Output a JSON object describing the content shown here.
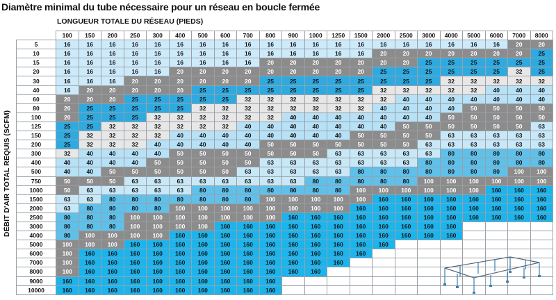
{
  "title": "Diamètre minimal du tube nécessaire pour un réseau en boucle fermée",
  "x_axis_label": "LONGUEUR TOTALE DU RÉSEAU (PIEDS)",
  "y_axis_label": "DÉBIT D'AIR TOTAL REQUIS (SCFM)",
  "columns": [
    "100",
    "150",
    "200",
    "250",
    "300",
    "400",
    "500",
    "600",
    "700",
    "800",
    "900",
    "1000",
    "1250",
    "1500",
    "2000",
    "2500",
    "3000",
    "4000",
    "5000",
    "6000",
    "7000",
    "8000"
  ],
  "rows": [
    {
      "flow": "5",
      "values": [
        "16",
        "16",
        "16",
        "16",
        "16",
        "16",
        "16",
        "16",
        "16",
        "16",
        "16",
        "16",
        "16",
        "16",
        "16",
        "16",
        "16",
        "16",
        "16",
        "16",
        "20",
        "20"
      ]
    },
    {
      "flow": "10",
      "values": [
        "16",
        "16",
        "16",
        "16",
        "16",
        "16",
        "16",
        "16",
        "16",
        "16",
        "16",
        "16",
        "16",
        "16",
        "20",
        "20",
        "20",
        "20",
        "20",
        "20",
        "20",
        "25"
      ]
    },
    {
      "flow": "15",
      "values": [
        "16",
        "16",
        "16",
        "16",
        "16",
        "16",
        "16",
        "16",
        "16",
        "20",
        "20",
        "20",
        "20",
        "20",
        "20",
        "20",
        "25",
        "25",
        "25",
        "25",
        "25",
        "25"
      ]
    },
    {
      "flow": "20",
      "values": [
        "16",
        "16",
        "16",
        "16",
        "16",
        "20",
        "20",
        "20",
        "20",
        "20",
        "20",
        "20",
        "20",
        "20",
        "25",
        "25",
        "25",
        "25",
        "25",
        "25",
        "32",
        "25"
      ]
    },
    {
      "flow": "30",
      "values": [
        "16",
        "16",
        "16",
        "20",
        "20",
        "20",
        "20",
        "20",
        "20",
        "25",
        "25",
        "25",
        "25",
        "25",
        "25",
        "25",
        "25",
        "32",
        "32",
        "32",
        "32",
        "32"
      ]
    },
    {
      "flow": "40",
      "values": [
        "16",
        "20",
        "20",
        "20",
        "20",
        "20",
        "25",
        "25",
        "25",
        "25",
        "25",
        "25",
        "25",
        "25",
        "32",
        "32",
        "32",
        "32",
        "32",
        "40",
        "40",
        "40"
      ]
    },
    {
      "flow": "60",
      "values": [
        "20",
        "20",
        "20",
        "25",
        "25",
        "25",
        "25",
        "25",
        "32",
        "32",
        "32",
        "32",
        "32",
        "32",
        "32",
        "40",
        "40",
        "40",
        "40",
        "40",
        "40",
        "40"
      ]
    },
    {
      "flow": "80",
      "values": [
        "20",
        "25",
        "25",
        "25",
        "25",
        "25",
        "32",
        "32",
        "32",
        "32",
        "32",
        "32",
        "32",
        "32",
        "40",
        "40",
        "40",
        "40",
        "50",
        "50",
        "50",
        "50"
      ]
    },
    {
      "flow": "100",
      "values": [
        "20",
        "25",
        "25",
        "25",
        "32",
        "32",
        "32",
        "32",
        "32",
        "32",
        "40",
        "40",
        "40",
        "40",
        "40",
        "40",
        "40",
        "50",
        "50",
        "50",
        "50",
        "50"
      ]
    },
    {
      "flow": "125",
      "values": [
        "25",
        "25",
        "32",
        "32",
        "32",
        "32",
        "32",
        "32",
        "40",
        "40",
        "40",
        "40",
        "40",
        "40",
        "40",
        "50",
        "50",
        "50",
        "50",
        "50",
        "50",
        "63"
      ]
    },
    {
      "flow": "150",
      "values": [
        "25",
        "32",
        "32",
        "32",
        "32",
        "40",
        "40",
        "40",
        "40",
        "40",
        "40",
        "40",
        "40",
        "50",
        "50",
        "50",
        "50",
        "63",
        "63",
        "63",
        "63",
        "63"
      ]
    },
    {
      "flow": "200",
      "values": [
        "25",
        "32",
        "32",
        "32",
        "40",
        "40",
        "40",
        "40",
        "40",
        "50",
        "50",
        "50",
        "50",
        "50",
        "50",
        "50",
        "63",
        "63",
        "63",
        "63",
        "63",
        "63"
      ]
    },
    {
      "flow": "300",
      "values": [
        "32",
        "40",
        "40",
        "40",
        "40",
        "50",
        "50",
        "50",
        "50",
        "50",
        "50",
        "50",
        "63",
        "63",
        "63",
        "63",
        "63",
        "80",
        "80",
        "80",
        "80",
        "80"
      ]
    },
    {
      "flow": "400",
      "values": [
        "40",
        "40",
        "40",
        "40",
        "50",
        "50",
        "50",
        "50",
        "50",
        "63",
        "63",
        "63",
        "63",
        "63",
        "63",
        "63",
        "80",
        "80",
        "80",
        "80",
        "80",
        "80"
      ]
    },
    {
      "flow": "500",
      "values": [
        "40",
        "40",
        "50",
        "50",
        "50",
        "50",
        "50",
        "50",
        "63",
        "63",
        "63",
        "63",
        "63",
        "80",
        "80",
        "80",
        "80",
        "80",
        "80",
        "80",
        "100",
        "100"
      ]
    },
    {
      "flow": "750",
      "values": [
        "50",
        "50",
        "50",
        "63",
        "63",
        "63",
        "63",
        "63",
        "63",
        "63",
        "63",
        "80",
        "80",
        "80",
        "80",
        "80",
        "100",
        "100",
        "100",
        "100",
        "100",
        "100"
      ]
    },
    {
      "flow": "1000",
      "values": [
        "50",
        "63",
        "63",
        "63",
        "63",
        "63",
        "80",
        "80",
        "80",
        "80",
        "80",
        "80",
        "80",
        "100",
        "100",
        "100",
        "100",
        "100",
        "100",
        "160",
        "160",
        "160"
      ]
    },
    {
      "flow": "1500",
      "values": [
        "63",
        "63",
        "80",
        "80",
        "80",
        "80",
        "80",
        "80",
        "80",
        "100",
        "100",
        "100",
        "100",
        "100",
        "160",
        "160",
        "160",
        "160",
        "160",
        "160",
        "160",
        "160"
      ]
    },
    {
      "flow": "2000",
      "values": [
        "63",
        "80",
        "80",
        "80",
        "80",
        "100",
        "100",
        "100",
        "100",
        "100",
        "100",
        "100",
        "100",
        "160",
        "160",
        "160",
        "160",
        "160",
        "160",
        "160",
        "160",
        "160"
      ]
    },
    {
      "flow": "2500",
      "values": [
        "80",
        "80",
        "80",
        "100",
        "100",
        "100",
        "100",
        "100",
        "100",
        "100",
        "160",
        "160",
        "160",
        "160",
        "160",
        "160",
        "160",
        "160",
        "160",
        "160",
        "160",
        "160"
      ]
    },
    {
      "flow": "3000",
      "values": [
        "80",
        "80",
        "80",
        "100",
        "100",
        "100",
        "100",
        "160",
        "160",
        "160",
        "160",
        "160",
        "160",
        "160",
        "160",
        "160",
        "160",
        "160",
        "",
        "",
        "",
        ""
      ]
    },
    {
      "flow": "4000",
      "values": [
        "80",
        "100",
        "100",
        "100",
        "100",
        "160",
        "160",
        "160",
        "160",
        "160",
        "160",
        "160",
        "160",
        "160",
        "160",
        "160",
        "160",
        "160",
        "",
        "",
        "",
        ""
      ]
    },
    {
      "flow": "5000",
      "values": [
        "100",
        "100",
        "100",
        "160",
        "160",
        "160",
        "160",
        "160",
        "160",
        "160",
        "160",
        "160",
        "160",
        "160",
        "160",
        "",
        "",
        "",
        "",
        "",
        "",
        ""
      ]
    },
    {
      "flow": "6000",
      "values": [
        "100",
        "160",
        "160",
        "160",
        "160",
        "160",
        "160",
        "160",
        "160",
        "160",
        "160",
        "160",
        "160",
        "160",
        "",
        "",
        "",
        "",
        "",
        "",
        "",
        ""
      ]
    },
    {
      "flow": "7000",
      "values": [
        "100",
        "160",
        "160",
        "160",
        "160",
        "160",
        "160",
        "160",
        "160",
        "160",
        "160",
        "160",
        "160",
        "",
        "",
        "",
        "",
        "",
        "",
        "",
        "",
        ""
      ]
    },
    {
      "flow": "8000",
      "values": [
        "100",
        "160",
        "160",
        "160",
        "160",
        "160",
        "160",
        "160",
        "160",
        "160",
        "160",
        "160",
        "",
        "",
        "",
        "",
        "",
        "",
        "",
        "",
        "",
        ""
      ]
    },
    {
      "flow": "9000",
      "values": [
        "160",
        "160",
        "160",
        "160",
        "160",
        "160",
        "160",
        "160",
        "160",
        "160",
        "",
        "",
        "",
        "",
        "",
        "",
        "",
        "",
        "",
        "",
        "",
        ""
      ]
    },
    {
      "flow": "10000",
      "values": [
        "160",
        "160",
        "160",
        "160",
        "160",
        "160",
        "160",
        "160",
        "160",
        "160",
        "",
        "",
        "",
        "",
        "",
        "",
        "",
        "",
        "",
        "",
        "",
        ""
      ]
    }
  ],
  "diameter_colors": {
    "16": "#cdeafb",
    "20": "#8c8c8c",
    "25": "#2faae0",
    "32": "#e7e7e7",
    "40": "#b7e1f6",
    "50": "#8c8c8c",
    "63": "#c8e8f8",
    "80": "#5fc0ea",
    "100": "#8c8c8c",
    "160": "#1cb4ec"
  },
  "diagram_icon": "closed-loop-network-diagram-icon"
}
